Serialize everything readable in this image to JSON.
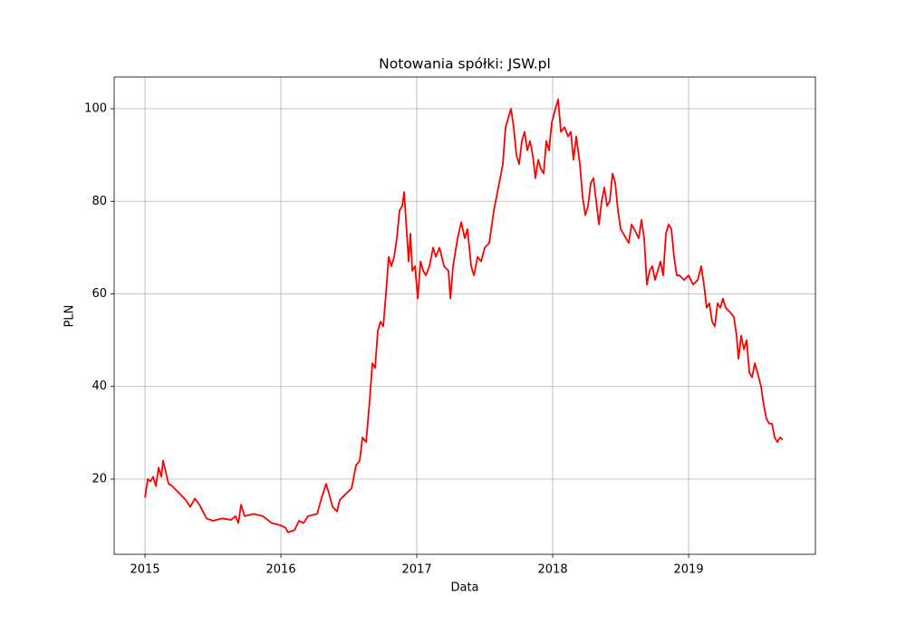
{
  "chart_data": {
    "type": "line",
    "title": "Notowania spółki: JSW.pl",
    "x_label": "Data",
    "y_label": "PLN",
    "color": "#ff0000",
    "grid": true,
    "xlim": [
      2014.773,
      2019.933
    ],
    "xticks": [
      2015,
      2016,
      2017,
      2018,
      2019
    ],
    "ylim": [
      3.76,
      106.85
    ],
    "yticks": [
      20,
      40,
      60,
      80,
      100
    ],
    "x": [
      2015.0,
      2015.02,
      2015.04,
      2015.06,
      2015.08,
      2015.1,
      2015.12,
      2015.133,
      2015.153,
      2015.173,
      2015.2,
      2015.233,
      2015.267,
      2015.3,
      2015.333,
      2015.367,
      2015.4,
      2015.453,
      2015.5,
      2015.567,
      2015.633,
      2015.667,
      2015.687,
      2015.707,
      2015.733,
      2015.8,
      2015.867,
      2015.933,
      2016.0,
      2016.033,
      2016.053,
      2016.1,
      2016.133,
      2016.167,
      2016.2,
      2016.267,
      2016.3,
      2016.333,
      2016.353,
      2016.38,
      2016.413,
      2016.433,
      2016.467,
      2016.52,
      2016.553,
      2016.58,
      2016.6,
      2016.627,
      2016.653,
      2016.673,
      2016.693,
      2016.713,
      2016.733,
      2016.753,
      2016.773,
      2016.793,
      2016.813,
      2016.833,
      2016.853,
      2016.873,
      2016.893,
      2016.907,
      2016.92,
      2016.94,
      2016.953,
      2016.967,
      2016.987,
      2017.007,
      2017.027,
      2017.047,
      2017.067,
      2017.093,
      2017.12,
      2017.14,
      2017.167,
      2017.2,
      2017.233,
      2017.247,
      2017.267,
      2017.3,
      2017.327,
      2017.353,
      2017.373,
      2017.4,
      2017.42,
      2017.447,
      2017.473,
      2017.5,
      2017.533,
      2017.567,
      2017.6,
      2017.633,
      2017.653,
      2017.673,
      2017.693,
      2017.713,
      2017.733,
      2017.753,
      2017.773,
      2017.793,
      2017.813,
      2017.833,
      2017.853,
      2017.873,
      2017.893,
      2017.913,
      2017.933,
      2017.953,
      2017.973,
      2017.993,
      2018.02,
      2018.04,
      2018.06,
      2018.087,
      2018.113,
      2018.133,
      2018.153,
      2018.173,
      2018.2,
      2018.22,
      2018.24,
      2018.26,
      2018.28,
      2018.3,
      2018.32,
      2018.34,
      2018.36,
      2018.38,
      2018.4,
      2018.42,
      2018.44,
      2018.46,
      2018.48,
      2018.5,
      2018.52,
      2018.54,
      2018.56,
      2018.58,
      2018.6,
      2018.633,
      2018.653,
      2018.673,
      2018.693,
      2018.713,
      2018.733,
      2018.753,
      2018.773,
      2018.793,
      2018.813,
      2018.833,
      2018.853,
      2018.873,
      2018.893,
      2018.913,
      2018.933,
      2018.967,
      2019.0,
      2019.033,
      2019.067,
      2019.093,
      2019.113,
      2019.133,
      2019.153,
      2019.173,
      2019.193,
      2019.213,
      2019.233,
      2019.253,
      2019.273,
      2019.307,
      2019.333,
      2019.353,
      2019.367,
      2019.387,
      2019.407,
      2019.427,
      2019.447,
      2019.467,
      2019.487,
      2019.507,
      2019.533,
      2019.553,
      2019.573,
      2019.593,
      2019.613,
      2019.633,
      2019.653,
      2019.673,
      2019.693
    ],
    "values": [
      16,
      20,
      19.5,
      20.5,
      18.5,
      22.5,
      20.5,
      24,
      21.5,
      19,
      18.5,
      17.5,
      16.5,
      15.5,
      14,
      15.8,
      14.5,
      11.5,
      11,
      11.5,
      11.2,
      12,
      10.5,
      14.5,
      12,
      12.5,
      12,
      10.5,
      10,
      9.5,
      8.5,
      9,
      11,
      10.5,
      12,
      12.5,
      16,
      19,
      17,
      14,
      13,
      15.5,
      16.5,
      18,
      23,
      24,
      29,
      28,
      37,
      45,
      44,
      52,
      54,
      53,
      60,
      68,
      66,
      68,
      72,
      78,
      79,
      82,
      76,
      67,
      73,
      65,
      66,
      59,
      67,
      65,
      64,
      66,
      70,
      68,
      70,
      66,
      65,
      59,
      66,
      72,
      75.5,
      72,
      74,
      66,
      64,
      68,
      67,
      70,
      71,
      78,
      83,
      88,
      96,
      98,
      100,
      96,
      90,
      88,
      93,
      95,
      91,
      93,
      90,
      85,
      89,
      87,
      86,
      93,
      91,
      97,
      100,
      102,
      95,
      96,
      94,
      95,
      89,
      94,
      88,
      81,
      77,
      79,
      84,
      85,
      80,
      75,
      80,
      83,
      79,
      80,
      86,
      84,
      78,
      74,
      73,
      72,
      71,
      75,
      74,
      72,
      76,
      72,
      62,
      65,
      66,
      63,
      65,
      67,
      64,
      73,
      75,
      74,
      68,
      64,
      64,
      63,
      64,
      62,
      63,
      66,
      62,
      57,
      58,
      54,
      53,
      58,
      57,
      59,
      57,
      56,
      55,
      51,
      46,
      51,
      48,
      50,
      43,
      42,
      45,
      43,
      40,
      36,
      33,
      32,
      32,
      29,
      28,
      29,
      28.5
    ]
  }
}
